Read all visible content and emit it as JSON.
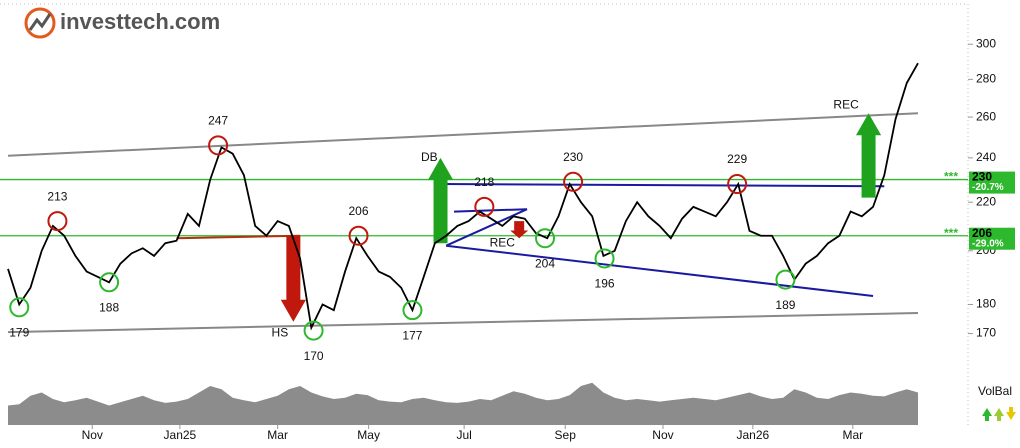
{
  "chart_data": {
    "type": "line",
    "brand": "investtech.com",
    "log_scale": true,
    "ylim": [
      163,
      324
    ],
    "yticks": [
      170,
      180,
      200,
      220,
      240,
      260,
      280,
      300
    ],
    "xlim": [
      0,
      81
    ],
    "xticks": [
      {
        "value": 7.5,
        "label": "Nov"
      },
      {
        "value": 15.3,
        "label": "Jan25"
      },
      {
        "value": 24.0,
        "label": "Mar"
      },
      {
        "value": 32.1,
        "label": "May"
      },
      {
        "value": 40.6,
        "label": "Jul"
      },
      {
        "value": 49.6,
        "label": "Sep"
      },
      {
        "value": 58.3,
        "label": "Nov"
      },
      {
        "value": 66.3,
        "label": "Jan26"
      },
      {
        "value": 75.2,
        "label": "Mar"
      }
    ],
    "series": [
      {
        "color": "#000000",
        "values": [
          193,
          180,
          186,
          200,
          210,
          206,
          198,
          192,
          190,
          188,
          195,
          199,
          201,
          198,
          203,
          204,
          215,
          210,
          230,
          245,
          242,
          232,
          210,
          206,
          212,
          210,
          197,
          172,
          180,
          178,
          192,
          205,
          198,
          192,
          190,
          186,
          178,
          190,
          203,
          206,
          210,
          212,
          216,
          213,
          210,
          214,
          213,
          207,
          205,
          214,
          228,
          220,
          214,
          198,
          200,
          212,
          220,
          214,
          210,
          205,
          213,
          218,
          216,
          214,
          220,
          228,
          208,
          206,
          206,
          198,
          189,
          195,
          198,
          203,
          206,
          216,
          214,
          218,
          232,
          259,
          278,
          289
        ]
      }
    ],
    "volume": {
      "label": "VolBal",
      "color": "#8c8c8c",
      "vlim": [
        0,
        100
      ],
      "values": [
        30,
        32,
        45,
        50,
        40,
        35,
        38,
        42,
        36,
        30,
        35,
        40,
        45,
        38,
        34,
        36,
        40,
        50,
        60,
        55,
        42,
        38,
        35,
        40,
        45,
        55,
        60,
        50,
        44,
        40,
        42,
        48,
        46,
        38,
        36,
        35,
        40,
        42,
        38,
        35,
        34,
        36,
        40,
        38,
        45,
        52,
        48,
        42,
        38,
        40,
        46,
        60,
        65,
        50,
        42,
        38,
        40,
        38,
        36,
        38,
        40,
        42,
        40,
        38,
        42,
        46,
        50,
        44,
        40,
        42,
        55,
        50,
        42,
        40,
        46,
        50,
        48,
        45,
        44,
        50,
        55,
        50
      ]
    },
    "lines": [
      {
        "color": "#888888",
        "x": [
          0,
          81
        ],
        "y": [
          241,
          262
        ]
      },
      {
        "color": "#888888",
        "x": [
          0,
          81
        ],
        "y": [
          170.5,
          177
        ]
      },
      {
        "color": "#1a1aa0",
        "x": [
          38.5,
          78
        ],
        "y": [
          228,
          227
        ]
      },
      {
        "color": "#1a1aa0",
        "x": [
          39,
          77
        ],
        "y": [
          202,
          183
        ]
      },
      {
        "color": "#1a1aa0",
        "x": [
          39,
          46.2
        ],
        "y": [
          202,
          217
        ]
      },
      {
        "color": "#1a1aa0",
        "x": [
          39.7,
          46.2
        ],
        "y": [
          216,
          217
        ]
      },
      {
        "color": "#b03010",
        "x": [
          15,
          26
        ],
        "y": [
          205,
          206
        ]
      }
    ],
    "levels": [
      {
        "value": 230,
        "label": "230",
        "change": "-20.7%",
        "stars": "***",
        "color": "#2db82d"
      },
      {
        "value": 206,
        "label": "206",
        "change": "-29.0%",
        "stars": "***",
        "color": "#2db82d"
      }
    ],
    "arrows": [
      {
        "x": 38.5,
        "from": 203,
        "to": 240,
        "color": "#1fa31f"
      },
      {
        "x": 25.4,
        "from": 206,
        "to": 174,
        "color": "#c0180c"
      },
      {
        "x": 76.6,
        "from": 222,
        "to": 262,
        "color": "#1fa31f"
      },
      {
        "x": 45.5,
        "from": 212,
        "to": 205,
        "color": "#c0180c"
      }
    ],
    "annotations": [
      {
        "label": "179",
        "x": 1,
        "y": 179,
        "kind": "low"
      },
      {
        "label": "188",
        "x": 9,
        "y": 188,
        "kind": "low"
      },
      {
        "label": "213",
        "x": 4.4,
        "y": 212,
        "kind": "high"
      },
      {
        "label": "247",
        "x": 18.7,
        "y": 246,
        "kind": "high"
      },
      {
        "label": "170",
        "x": 27.2,
        "y": 171,
        "kind": "low"
      },
      {
        "label": "HS",
        "x": 24.2,
        "y": 170,
        "kind": "text"
      },
      {
        "label": "206",
        "x": 31.2,
        "y": 206,
        "kind": "high"
      },
      {
        "label": "177",
        "x": 36,
        "y": 178,
        "kind": "low"
      },
      {
        "label": "DB",
        "x": 37.5,
        "y": 240,
        "kind": "text"
      },
      {
        "label": "218",
        "x": 42.4,
        "y": 218,
        "kind": "high"
      },
      {
        "label": "REC",
        "x": 44,
        "y": 203,
        "kind": "text"
      },
      {
        "label": "204",
        "x": 47.8,
        "y": 205,
        "kind": "low"
      },
      {
        "label": "230",
        "x": 50.3,
        "y": 229,
        "kind": "high"
      },
      {
        "label": "196",
        "x": 53.1,
        "y": 197,
        "kind": "low"
      },
      {
        "label": "229",
        "x": 64.9,
        "y": 228,
        "kind": "high"
      },
      {
        "label": "189",
        "x": 69.2,
        "y": 189,
        "kind": "low"
      },
      {
        "label": "REC",
        "x": 74.6,
        "y": 266,
        "kind": "text"
      }
    ]
  }
}
